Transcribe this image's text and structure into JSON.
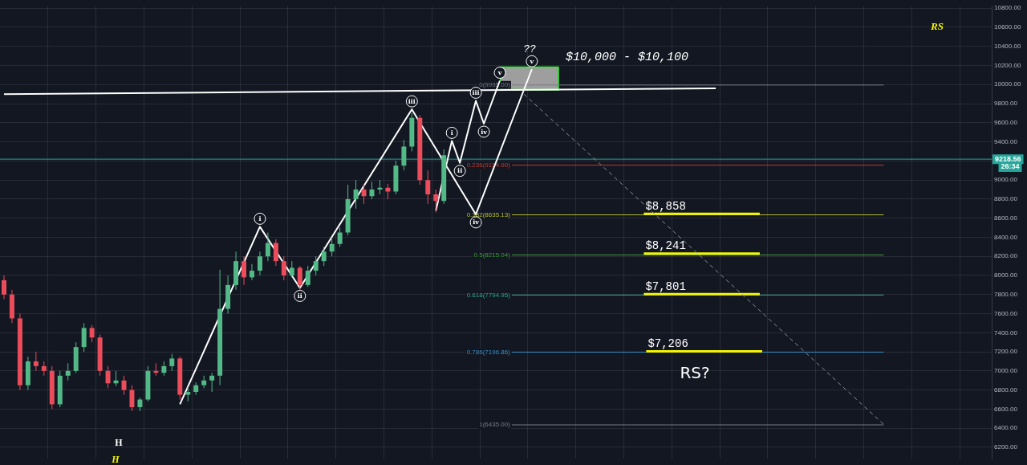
{
  "chart_data": {
    "type": "candlestick",
    "categories": [
      null,
      null,
      null,
      null,
      null,
      null,
      null,
      null,
      null,
      null,
      null,
      null,
      null,
      null,
      null,
      null,
      null,
      null,
      null,
      null,
      null,
      null,
      null,
      null,
      null,
      null,
      null,
      null,
      null,
      null,
      null,
      null,
      null,
      null,
      null,
      null,
      null,
      null,
      null,
      null,
      null,
      null,
      null,
      null,
      null,
      null,
      null,
      null,
      null,
      null,
      null,
      null,
      null,
      null,
      null,
      null,
      null,
      null,
      null,
      null,
      null,
      null,
      null,
      null,
      null,
      null,
      null,
      null,
      null,
      null,
      null,
      null,
      null,
      null,
      null,
      null,
      null,
      null,
      null,
      null,
      null,
      null,
      null,
      null,
      null,
      null,
      null,
      null,
      null,
      null,
      null,
      null,
      null,
      null,
      null,
      null,
      null,
      null,
      null,
      null,
      null,
      null,
      null,
      null,
      null,
      null,
      null,
      null,
      null,
      null,
      null,
      null,
      null,
      null,
      null,
      null,
      null,
      null,
      null,
      null,
      null,
      null,
      null,
      null
    ],
    "ohlc": [
      [
        7950,
        8000,
        7750,
        7800
      ],
      [
        7800,
        7850,
        7500,
        7550
      ],
      [
        7550,
        7600,
        6800,
        6850
      ],
      [
        6850,
        7150,
        6800,
        7100
      ],
      [
        7100,
        7200,
        7000,
        7050
      ],
      [
        7050,
        7100,
        6950,
        7000
      ],
      [
        7000,
        7050,
        6600,
        6650
      ],
      [
        6650,
        7000,
        6620,
        6950
      ],
      [
        6950,
        7080,
        6900,
        7000
      ],
      [
        7000,
        7300,
        6980,
        7250
      ],
      [
        7250,
        7500,
        7200,
        7450
      ],
      [
        7450,
        7480,
        7300,
        7350
      ],
      [
        7350,
        7380,
        6950,
        7000
      ],
      [
        7000,
        7050,
        6820,
        6870
      ],
      [
        6870,
        7000,
        6840,
        6900
      ],
      [
        6900,
        6950,
        6750,
        6800
      ],
      [
        6800,
        6850,
        6580,
        6620
      ],
      [
        6620,
        6720,
        6580,
        6700
      ],
      [
        6700,
        7050,
        6680,
        7000
      ],
      [
        7000,
        7080,
        6950,
        6980
      ],
      [
        6980,
        7100,
        6950,
        7050
      ],
      [
        7050,
        7180,
        7000,
        7130
      ],
      [
        7130,
        7150,
        6700,
        6750
      ],
      [
        6750,
        6830,
        6680,
        6780
      ],
      [
        6780,
        6880,
        6750,
        6850
      ],
      [
        6850,
        6950,
        6820,
        6900
      ],
      [
        6900,
        6980,
        6780,
        6950
      ],
      [
        6950,
        8060,
        6850,
        7650
      ],
      [
        7650,
        8000,
        7600,
        7900
      ],
      [
        7900,
        8250,
        7850,
        8150
      ],
      [
        8150,
        8200,
        7900,
        7980
      ],
      [
        7980,
        8120,
        7950,
        8050
      ],
      [
        8050,
        8250,
        8000,
        8200
      ],
      [
        8200,
        8450,
        8150,
        8340
      ],
      [
        8340,
        8380,
        8100,
        8150
      ],
      [
        8150,
        8200,
        7950,
        8000
      ],
      [
        8000,
        8150,
        7980,
        8080
      ],
      [
        8080,
        8100,
        7850,
        7900
      ],
      [
        7900,
        8100,
        7880,
        8050
      ],
      [
        8050,
        8200,
        8000,
        8150
      ],
      [
        8150,
        8300,
        8100,
        8250
      ],
      [
        8250,
        8400,
        8200,
        8330
      ],
      [
        8330,
        8500,
        8300,
        8450
      ],
      [
        8450,
        8950,
        8420,
        8800
      ],
      [
        8800,
        9000,
        8700,
        8900
      ],
      [
        8900,
        8950,
        8750,
        8830
      ],
      [
        8830,
        8980,
        8800,
        8900
      ],
      [
        8900,
        9000,
        8850,
        8920
      ],
      [
        8920,
        8960,
        8800,
        8880
      ],
      [
        8880,
        9200,
        8850,
        9150
      ],
      [
        9150,
        9420,
        9100,
        9350
      ],
      [
        9350,
        9700,
        9300,
        9650
      ],
      [
        9650,
        9680,
        8950,
        9000
      ],
      [
        9000,
        9100,
        8750,
        8850
      ],
      [
        8850,
        8900,
        8660,
        8780
      ],
      [
        8780,
        9320,
        8750,
        9260
      ],
      null,
      null,
      null,
      null,
      null,
      null,
      null,
      null,
      null,
      null,
      null,
      null,
      null,
      null,
      null,
      null,
      null,
      null,
      null,
      null,
      null,
      null,
      null,
      null,
      null,
      null,
      null,
      null,
      null,
      null,
      null,
      null,
      null,
      null,
      null,
      null,
      null,
      null,
      null,
      null,
      null,
      null,
      null,
      null,
      null,
      null,
      null,
      null,
      null,
      null,
      null,
      null,
      null,
      null,
      null,
      null,
      null,
      null,
      null,
      null,
      null,
      null,
      null,
      null,
      null,
      null,
      null,
      null
    ],
    "series": [
      {
        "type": "line",
        "color": "#ffffff",
        "values": [
          null,
          null,
          null,
          null,
          null,
          null,
          null,
          null,
          null,
          null,
          null,
          null,
          null,
          null,
          null,
          null,
          null,
          null,
          null,
          null,
          null,
          null,
          6650,
          null,
          null,
          null,
          null,
          null,
          null,
          null,
          null,
          null,
          8510,
          null,
          null,
          null,
          null,
          7870,
          null,
          null,
          null,
          null,
          null,
          null,
          null,
          null,
          null,
          null,
          null,
          null,
          null,
          9740,
          null,
          null,
          null,
          null,
          null,
          null,
          null,
          8640,
          null,
          null,
          null,
          null,
          null,
          null,
          10160,
          null,
          null,
          null,
          null,
          null,
          null,
          null,
          null,
          null,
          null,
          null,
          null,
          null,
          null,
          null,
          null,
          null,
          null,
          null,
          null,
          null,
          null,
          null,
          null,
          null,
          null,
          null,
          null,
          null,
          null,
          null,
          null,
          null,
          null,
          null,
          null,
          null,
          null,
          null,
          null,
          null,
          null,
          null,
          null,
          null,
          null,
          null,
          null,
          null,
          null,
          null,
          null,
          null,
          null,
          null,
          null,
          null
        ],
        "value_labels": [
          null,
          null,
          null,
          null,
          null,
          null,
          null,
          null,
          null,
          null,
          null,
          null,
          null,
          null,
          null,
          null,
          null,
          null,
          null,
          null,
          null,
          null,
          null,
          null,
          null,
          null,
          null,
          null,
          null,
          null,
          null,
          null,
          "i",
          null,
          null,
          null,
          null,
          "ii",
          null,
          null,
          null,
          null,
          null,
          null,
          null,
          null,
          null,
          null,
          null,
          null,
          null,
          "iii",
          null,
          null,
          null,
          null,
          null,
          null,
          null,
          "iv",
          null,
          null,
          null,
          null,
          null,
          null,
          "v",
          null,
          null,
          null,
          null,
          null,
          null,
          null,
          null,
          null,
          null,
          null,
          null,
          null,
          null,
          null,
          null,
          null,
          null,
          null,
          null,
          null,
          null,
          null,
          null,
          null,
          null,
          null,
          null,
          null,
          null,
          null,
          null,
          null,
          null,
          null,
          null,
          null,
          null,
          null,
          null,
          null,
          null,
          null,
          null,
          null,
          null,
          null,
          null,
          null,
          null,
          null,
          null,
          null,
          null,
          null,
          null,
          null
        ]
      },
      {
        "type": "line",
        "color": "#ffffff",
        "values": [
          null,
          null,
          null,
          null,
          null,
          null,
          null,
          null,
          null,
          null,
          null,
          null,
          null,
          null,
          null,
          null,
          null,
          null,
          null,
          null,
          null,
          null,
          null,
          null,
          null,
          null,
          null,
          null,
          null,
          null,
          null,
          null,
          null,
          null,
          null,
          null,
          null,
          null,
          null,
          null,
          null,
          null,
          null,
          null,
          null,
          null,
          null,
          null,
          null,
          null,
          null,
          null,
          null,
          null,
          8680,
          null,
          9410,
          9180,
          null,
          9830,
          9590,
          null,
          10040,
          null,
          null,
          null,
          null,
          null,
          null,
          null,
          null,
          null,
          null,
          null,
          null,
          null,
          null,
          null,
          null,
          null,
          null,
          null,
          null,
          null,
          null,
          null,
          null,
          null,
          null,
          null,
          null,
          null,
          null,
          null,
          null,
          null,
          null,
          null,
          null,
          null,
          null,
          null,
          null,
          null,
          null,
          null,
          null,
          null,
          null,
          null,
          null,
          null,
          null,
          null,
          null,
          null,
          null,
          null,
          null,
          null,
          null,
          null,
          null,
          null
        ],
        "value_labels": [
          null,
          null,
          null,
          null,
          null,
          null,
          null,
          null,
          null,
          null,
          null,
          null,
          null,
          null,
          null,
          null,
          null,
          null,
          null,
          null,
          null,
          null,
          null,
          null,
          null,
          null,
          null,
          null,
          null,
          null,
          null,
          null,
          null,
          null,
          null,
          null,
          null,
          null,
          null,
          null,
          null,
          null,
          null,
          null,
          null,
          null,
          null,
          null,
          null,
          null,
          null,
          null,
          null,
          null,
          null,
          null,
          "i",
          "ii",
          null,
          "iii",
          "iv",
          null,
          "v",
          null,
          null,
          null,
          null,
          null,
          null,
          null,
          null,
          null,
          null,
          null,
          null,
          null,
          null,
          null,
          null,
          null,
          null,
          null,
          null,
          null,
          null,
          null,
          null,
          null,
          null,
          null,
          null,
          null,
          null,
          null,
          null,
          null,
          null,
          null,
          null,
          null,
          null,
          null,
          null,
          null,
          null,
          null,
          null,
          null,
          null,
          null,
          null,
          null,
          null,
          null,
          null,
          null,
          null,
          null,
          null,
          null,
          null,
          null,
          null,
          null
        ]
      },
      {
        "type": "line",
        "color": "#ffffff",
        "values": [
          9900,
          null,
          null,
          null,
          null,
          null,
          null,
          null,
          null,
          null,
          null,
          null,
          null,
          null,
          null,
          null,
          null,
          null,
          null,
          null,
          null,
          null,
          null,
          null,
          null,
          null,
          null,
          null,
          null,
          null,
          null,
          null,
          null,
          null,
          null,
          null,
          null,
          null,
          null,
          null,
          null,
          null,
          null,
          null,
          null,
          null,
          null,
          null,
          null,
          null,
          null,
          null,
          null,
          null,
          null,
          null,
          null,
          null,
          null,
          null,
          null,
          null,
          null,
          null,
          null,
          null,
          null,
          null,
          null,
          null,
          null,
          null,
          null,
          null,
          null,
          null,
          null,
          null,
          null,
          null,
          null,
          null,
          null,
          null,
          null,
          null,
          null,
          null,
          null,
          9960,
          null,
          null,
          null,
          null,
          null,
          null,
          null,
          null,
          null,
          null,
          null,
          null,
          null,
          null,
          null,
          null,
          null,
          null,
          null,
          null,
          null,
          null,
          null,
          null,
          null,
          null,
          null,
          null,
          null,
          null,
          null,
          null,
          null,
          null
        ]
      },
      {
        "type": "line",
        "color": "#8a8f98",
        "line_style": "dashed",
        "values": [
          null,
          null,
          null,
          null,
          null,
          null,
          null,
          null,
          null,
          null,
          null,
          null,
          null,
          null,
          null,
          null,
          null,
          null,
          null,
          null,
          null,
          null,
          null,
          null,
          null,
          null,
          null,
          null,
          null,
          null,
          null,
          null,
          null,
          null,
          null,
          null,
          null,
          null,
          null,
          null,
          null,
          null,
          null,
          null,
          null,
          null,
          null,
          null,
          null,
          null,
          null,
          null,
          null,
          null,
          null,
          null,
          null,
          null,
          null,
          null,
          null,
          null,
          null,
          null,
          null,
          9900,
          null,
          null,
          null,
          null,
          null,
          null,
          null,
          null,
          null,
          null,
          null,
          null,
          null,
          null,
          null,
          null,
          null,
          null,
          null,
          null,
          null,
          null,
          null,
          null,
          null,
          null,
          null,
          null,
          null,
          null,
          null,
          null,
          null,
          null,
          null,
          null,
          null,
          null,
          null,
          null,
          null,
          null,
          null,
          null,
          6440,
          null,
          null,
          null,
          null,
          null,
          null,
          null,
          null,
          null,
          null,
          null,
          null,
          null
        ]
      }
    ],
    "ylim": [
      6080,
      10820
    ],
    "yticks": [
      {
        "value": 6200,
        "label": "6200.00"
      },
      {
        "value": 6400,
        "label": "6400.00"
      },
      {
        "value": 6600,
        "label": "6600.00"
      },
      {
        "value": 6800,
        "label": "6800.00"
      },
      {
        "value": 7000,
        "label": "7000.00"
      },
      {
        "value": 7200,
        "label": "7200.00"
      },
      {
        "value": 7400,
        "label": "7400.00"
      },
      {
        "value": 7600,
        "label": "7600.00"
      },
      {
        "value": 7800,
        "label": "7800.00"
      },
      {
        "value": 8000,
        "label": "8000.00"
      },
      {
        "value": 8200,
        "label": "8200.00"
      },
      {
        "value": 8400,
        "label": "8400.00"
      },
      {
        "value": 8600,
        "label": "8600.00"
      },
      {
        "value": 8800,
        "label": "8800.00"
      },
      {
        "value": 9000,
        "label": "9000.00"
      },
      {
        "value": 9200,
        "label": null
      },
      {
        "value": 9400,
        "label": "9400.00"
      },
      {
        "value": 9600,
        "label": "9600.00"
      },
      {
        "value": 9800,
        "label": "9800.00"
      },
      {
        "value": 10000,
        "label": "10000.00"
      },
      {
        "value": 10200,
        "label": "10200.00"
      },
      {
        "value": 10400,
        "label": "10400.00"
      },
      {
        "value": 10600,
        "label": "10600.00"
      },
      {
        "value": 10800,
        "label": "10800.00"
      }
    ],
    "grid": true,
    "ref_lines": [
      {
        "axis": "y",
        "value": 9995,
        "label": "0(9995.00)",
        "color": "#787b86"
      },
      {
        "axis": "y",
        "value": 9154.9,
        "label": "0.236(9154.90)",
        "color": "#c0392b"
      },
      {
        "axis": "y",
        "value": 8635.13,
        "label": "0.382(8635.13)",
        "color": "#b5bd2c"
      },
      {
        "axis": "y",
        "value": 8215.04,
        "label": "0.5(8215.04)",
        "color": "#3f9c3a"
      },
      {
        "axis": "y",
        "value": 7794.95,
        "label": "0.618(7794.95)",
        "color": "#2fa58f"
      },
      {
        "axis": "y",
        "value": 7196.86,
        "label": "0.786(7196.86)",
        "color": "#3a8fc2"
      },
      {
        "axis": "y",
        "value": 6435,
        "label": "1(6435.00)",
        "color": "#787b86"
      },
      {
        "axis": "y",
        "value": 9218.56,
        "label": "9218.56",
        "color": "#26a69a"
      },
      {
        "axis": "y",
        "value": 8645,
        "color": "#f5f500"
      },
      {
        "axis": "y",
        "value": 8230,
        "color": "#f5f500"
      },
      {
        "axis": "y",
        "value": 7805,
        "color": "#f5f500"
      },
      {
        "axis": "y",
        "value": 7205,
        "color": "#f5f500"
      }
    ],
    "bands": [
      {
        "axis": "y",
        "from": 9945,
        "to": 10180,
        "color": "#9e9e9e"
      }
    ],
    "annotations": [
      "??",
      "$10,000 - $10,100",
      "RS?",
      "RS",
      "H",
      "H",
      "26:34",
      "$8,858",
      "$8,241",
      "$7,801",
      "$7,206"
    ]
  }
}
